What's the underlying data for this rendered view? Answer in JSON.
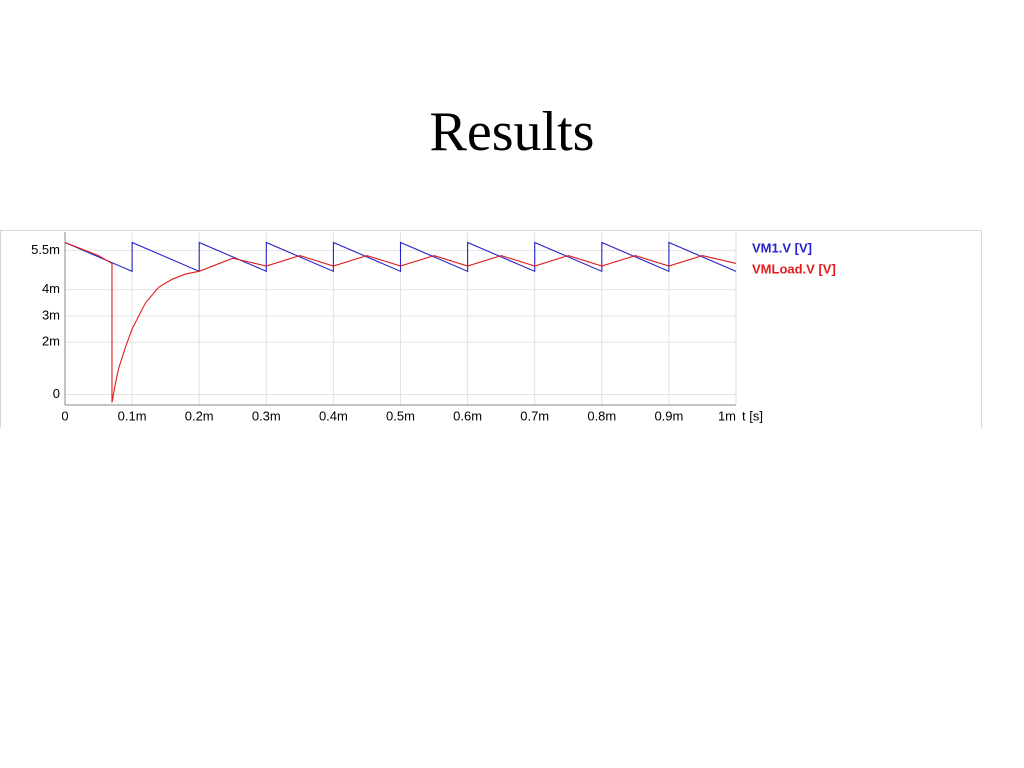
{
  "chart_data": {
    "type": "line",
    "title": "Results",
    "x_label": "t [s]",
    "xlim": [
      0,
      0.001
    ],
    "xticks": [
      {
        "value": 0,
        "label": "0"
      },
      {
        "value": 0.0001,
        "label": "0.1m"
      },
      {
        "value": 0.0002,
        "label": "0.2m"
      },
      {
        "value": 0.0003,
        "label": "0.3m"
      },
      {
        "value": 0.0004,
        "label": "0.4m"
      },
      {
        "value": 0.0005,
        "label": "0.5m"
      },
      {
        "value": 0.0006,
        "label": "0.6m"
      },
      {
        "value": 0.0007,
        "label": "0.7m"
      },
      {
        "value": 0.0008,
        "label": "0.8m"
      },
      {
        "value": 0.0009,
        "label": "0.9m"
      },
      {
        "value": 0.001,
        "label": "1m"
      }
    ],
    "ylim": [
      -0.0004,
      0.0062
    ],
    "yticks": [
      {
        "value": 0,
        "label": "0"
      },
      {
        "value": 0.002,
        "label": "2m"
      },
      {
        "value": 0.003,
        "label": "3m"
      },
      {
        "value": 0.004,
        "label": "4m"
      },
      {
        "value": 0.0055,
        "label": "5.5m"
      }
    ],
    "grid": true,
    "series": [
      {
        "name": "VM1.V [V]",
        "color": "#2424c8",
        "x": [
          0,
          0.0001,
          0.0001,
          0.0002,
          0.0002,
          0.0003,
          0.0003,
          0.0004,
          0.0004,
          0.0005,
          0.0005,
          0.0006,
          0.0006,
          0.0007,
          0.0007,
          0.0008,
          0.0008,
          0.0009,
          0.0009,
          0.001
        ],
        "values": [
          0.0058,
          0.0047,
          0.0058,
          0.0047,
          0.0058,
          0.0047,
          0.0058,
          0.0047,
          0.0058,
          0.0047,
          0.0058,
          0.0047,
          0.0058,
          0.0047,
          0.0058,
          0.0047,
          0.0058,
          0.0047,
          0.0058,
          0.0047
        ]
      },
      {
        "name": "VMLoad.V [V]",
        "color": "#e01c1c",
        "x": [
          0,
          5e-05,
          7e-05,
          7e-05,
          7.5e-05,
          8e-05,
          9e-05,
          0.0001,
          0.00012,
          0.00014,
          0.00016,
          0.00018,
          0.0002,
          0.00025,
          0.0003,
          0.00035,
          0.0004,
          0.00045,
          0.0005,
          0.00055,
          0.0006,
          0.00065,
          0.0007,
          0.00075,
          0.0008,
          0.00085,
          0.0009,
          0.00095,
          0.001
        ],
        "values": [
          0.0058,
          0.0053,
          0.005,
          -0.0003,
          0.0004,
          0.001,
          0.0018,
          0.0025,
          0.0035,
          0.0041,
          0.0044,
          0.0046,
          0.0047,
          0.0052,
          0.0049,
          0.0053,
          0.0049,
          0.0053,
          0.0049,
          0.0053,
          0.0049,
          0.0053,
          0.0049,
          0.0053,
          0.0049,
          0.0053,
          0.0049,
          0.0053,
          0.005
        ]
      }
    ]
  }
}
